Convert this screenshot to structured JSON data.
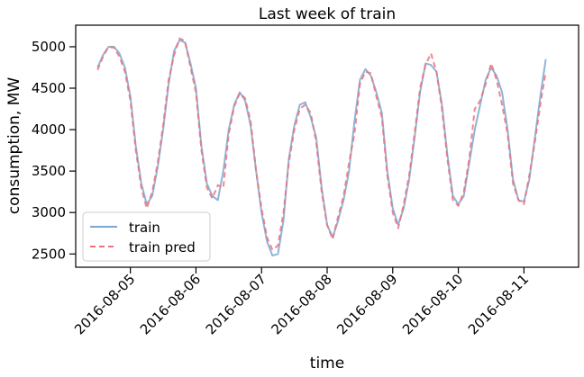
{
  "chart_data": {
    "type": "line",
    "title": "Last week of train",
    "xlabel": "time",
    "ylabel": "consumption, MW",
    "x_ticks": [
      "2016-08-05",
      "2016-08-06",
      "2016-08-07",
      "2016-08-08",
      "2016-08-09",
      "2016-08-10",
      "2016-08-11"
    ],
    "y_ticks": [
      2500,
      3000,
      3500,
      4000,
      4500,
      5000
    ],
    "xlim": [
      "2016-08-04T04:00",
      "2016-08-11T20:00"
    ],
    "ylim": [
      2340,
      5260
    ],
    "legend_position": "lower left",
    "series": [
      {
        "name": "train",
        "color": "#7aa8d2",
        "style": "solid",
        "points": [
          [
            "2016-08-04T12:00",
            4750
          ],
          [
            "2016-08-04T14:00",
            4900
          ],
          [
            "2016-08-04T16:00",
            5000
          ],
          [
            "2016-08-04T18:00",
            5000
          ],
          [
            "2016-08-04T20:00",
            4920
          ],
          [
            "2016-08-04T22:00",
            4750
          ],
          [
            "2016-08-05T00:00",
            4400
          ],
          [
            "2016-08-05T02:00",
            3800
          ],
          [
            "2016-08-05T04:00",
            3350
          ],
          [
            "2016-08-05T06:00",
            3100
          ],
          [
            "2016-08-05T08:00",
            3200
          ],
          [
            "2016-08-05T10:00",
            3550
          ],
          [
            "2016-08-05T12:00",
            4000
          ],
          [
            "2016-08-05T14:00",
            4550
          ],
          [
            "2016-08-05T16:00",
            4950
          ],
          [
            "2016-08-05T18:00",
            5080
          ],
          [
            "2016-08-05T20:00",
            5050
          ],
          [
            "2016-08-05T22:00",
            4800
          ],
          [
            "2016-08-06T00:00",
            4500
          ],
          [
            "2016-08-06T02:00",
            3800
          ],
          [
            "2016-08-06T04:00",
            3350
          ],
          [
            "2016-08-06T06:00",
            3200
          ],
          [
            "2016-08-06T08:00",
            3150
          ],
          [
            "2016-08-06T10:00",
            3500
          ],
          [
            "2016-08-06T12:00",
            4000
          ],
          [
            "2016-08-06T14:00",
            4300
          ],
          [
            "2016-08-06T16:00",
            4450
          ],
          [
            "2016-08-06T18:00",
            4350
          ],
          [
            "2016-08-06T20:00",
            4050
          ],
          [
            "2016-08-06T22:00",
            3500
          ],
          [
            "2016-08-07T00:00",
            3000
          ],
          [
            "2016-08-07T02:00",
            2650
          ],
          [
            "2016-08-07T04:00",
            2480
          ],
          [
            "2016-08-07T06:00",
            2500
          ],
          [
            "2016-08-07T08:00",
            2900
          ],
          [
            "2016-08-07T10:00",
            3650
          ],
          [
            "2016-08-07T12:00",
            4050
          ],
          [
            "2016-08-07T14:00",
            4300
          ],
          [
            "2016-08-07T16:00",
            4330
          ],
          [
            "2016-08-07T18:00",
            4150
          ],
          [
            "2016-08-07T20:00",
            3900
          ],
          [
            "2016-08-07T22:00",
            3300
          ],
          [
            "2016-08-08T00:00",
            2850
          ],
          [
            "2016-08-08T02:00",
            2700
          ],
          [
            "2016-08-08T04:00",
            2900
          ],
          [
            "2016-08-08T06:00",
            3150
          ],
          [
            "2016-08-08T08:00",
            3500
          ],
          [
            "2016-08-08T10:00",
            4100
          ],
          [
            "2016-08-08T12:00",
            4600
          ],
          [
            "2016-08-08T14:00",
            4730
          ],
          [
            "2016-08-08T16:00",
            4650
          ],
          [
            "2016-08-08T18:00",
            4450
          ],
          [
            "2016-08-08T20:00",
            4200
          ],
          [
            "2016-08-08T22:00",
            3500
          ],
          [
            "2016-08-09T00:00",
            3050
          ],
          [
            "2016-08-09T02:00",
            2850
          ],
          [
            "2016-08-09T04:00",
            3050
          ],
          [
            "2016-08-09T06:00",
            3400
          ],
          [
            "2016-08-09T08:00",
            3900
          ],
          [
            "2016-08-09T10:00",
            4450
          ],
          [
            "2016-08-09T12:00",
            4800
          ],
          [
            "2016-08-09T14:00",
            4780
          ],
          [
            "2016-08-09T16:00",
            4700
          ],
          [
            "2016-08-09T18:00",
            4300
          ],
          [
            "2016-08-09T20:00",
            3700
          ],
          [
            "2016-08-09T22:00",
            3200
          ],
          [
            "2016-08-10T00:00",
            3100
          ],
          [
            "2016-08-10T02:00",
            3200
          ],
          [
            "2016-08-10T04:00",
            3600
          ],
          [
            "2016-08-10T06:00",
            4000
          ],
          [
            "2016-08-10T08:00",
            4300
          ],
          [
            "2016-08-10T10:00",
            4600
          ],
          [
            "2016-08-10T12:00",
            4750
          ],
          [
            "2016-08-10T14:00",
            4650
          ],
          [
            "2016-08-10T16:00",
            4450
          ],
          [
            "2016-08-10T18:00",
            4000
          ],
          [
            "2016-08-10T20:00",
            3400
          ],
          [
            "2016-08-10T22:00",
            3150
          ],
          [
            "2016-08-11T00:00",
            3130
          ],
          [
            "2016-08-11T02:00",
            3400
          ],
          [
            "2016-08-11T04:00",
            3900
          ],
          [
            "2016-08-11T06:00",
            4400
          ],
          [
            "2016-08-11T08:00",
            4850
          ]
        ]
      },
      {
        "name": "train pred",
        "color": "#f0717a",
        "style": "dashed",
        "points": [
          [
            "2016-08-04T12:00",
            4720
          ],
          [
            "2016-08-04T14:00",
            4880
          ],
          [
            "2016-08-04T16:00",
            5000
          ],
          [
            "2016-08-04T18:00",
            4990
          ],
          [
            "2016-08-04T20:00",
            4880
          ],
          [
            "2016-08-04T22:00",
            4700
          ],
          [
            "2016-08-05T00:00",
            4350
          ],
          [
            "2016-08-05T02:00",
            3750
          ],
          [
            "2016-08-05T04:00",
            3300
          ],
          [
            "2016-08-05T06:00",
            3050
          ],
          [
            "2016-08-05T08:00",
            3250
          ],
          [
            "2016-08-05T10:00",
            3600
          ],
          [
            "2016-08-05T12:00",
            4050
          ],
          [
            "2016-08-05T14:00",
            4600
          ],
          [
            "2016-08-05T16:00",
            4900
          ],
          [
            "2016-08-05T18:00",
            5100
          ],
          [
            "2016-08-05T20:00",
            5070
          ],
          [
            "2016-08-05T22:00",
            4750
          ],
          [
            "2016-08-06T00:00",
            4450
          ],
          [
            "2016-08-06T02:00",
            3750
          ],
          [
            "2016-08-06T04:00",
            3300
          ],
          [
            "2016-08-06T06:00",
            3170
          ],
          [
            "2016-08-06T08:00",
            3330
          ],
          [
            "2016-08-06T10:00",
            3300
          ],
          [
            "2016-08-06T12:00",
            3950
          ],
          [
            "2016-08-06T14:00",
            4280
          ],
          [
            "2016-08-06T16:00",
            4440
          ],
          [
            "2016-08-06T18:00",
            4380
          ],
          [
            "2016-08-06T20:00",
            4100
          ],
          [
            "2016-08-06T22:00",
            3500
          ],
          [
            "2016-08-07T00:00",
            3050
          ],
          [
            "2016-08-07T02:00",
            2700
          ],
          [
            "2016-08-07T04:00",
            2550
          ],
          [
            "2016-08-07T06:00",
            2600
          ],
          [
            "2016-08-07T08:00",
            3000
          ],
          [
            "2016-08-07T10:00",
            3600
          ],
          [
            "2016-08-07T12:00",
            4000
          ],
          [
            "2016-08-07T14:00",
            4250
          ],
          [
            "2016-08-07T16:00",
            4300
          ],
          [
            "2016-08-07T18:00",
            4200
          ],
          [
            "2016-08-07T20:00",
            3850
          ],
          [
            "2016-08-07T22:00",
            3250
          ],
          [
            "2016-08-08T00:00",
            2850
          ],
          [
            "2016-08-08T02:00",
            2680
          ],
          [
            "2016-08-08T04:00",
            2950
          ],
          [
            "2016-08-08T06:00",
            3200
          ],
          [
            "2016-08-08T08:00",
            3600
          ],
          [
            "2016-08-08T10:00",
            3950
          ],
          [
            "2016-08-08T12:00",
            4550
          ],
          [
            "2016-08-08T14:00",
            4700
          ],
          [
            "2016-08-08T16:00",
            4680
          ],
          [
            "2016-08-08T18:00",
            4400
          ],
          [
            "2016-08-08T20:00",
            4150
          ],
          [
            "2016-08-08T22:00",
            3450
          ],
          [
            "2016-08-09T00:00",
            3000
          ],
          [
            "2016-08-09T02:00",
            2810
          ],
          [
            "2016-08-09T04:00",
            3100
          ],
          [
            "2016-08-09T06:00",
            3450
          ],
          [
            "2016-08-09T08:00",
            3950
          ],
          [
            "2016-08-09T10:00",
            4500
          ],
          [
            "2016-08-09T12:00",
            4780
          ],
          [
            "2016-08-09T14:00",
            4920
          ],
          [
            "2016-08-09T16:00",
            4700
          ],
          [
            "2016-08-09T18:00",
            4250
          ],
          [
            "2016-08-09T20:00",
            3650
          ],
          [
            "2016-08-09T22:00",
            3150
          ],
          [
            "2016-08-10T00:00",
            3080
          ],
          [
            "2016-08-10T02:00",
            3250
          ],
          [
            "2016-08-10T04:00",
            3650
          ],
          [
            "2016-08-10T06:00",
            4250
          ],
          [
            "2016-08-10T08:00",
            4350
          ],
          [
            "2016-08-10T10:00",
            4550
          ],
          [
            "2016-08-10T12:00",
            4800
          ],
          [
            "2016-08-10T14:00",
            4600
          ],
          [
            "2016-08-10T16:00",
            4300
          ],
          [
            "2016-08-10T18:00",
            3950
          ],
          [
            "2016-08-10T20:00",
            3350
          ],
          [
            "2016-08-10T22:00",
            3150
          ],
          [
            "2016-08-11T00:00",
            3100
          ],
          [
            "2016-08-11T02:00",
            3450
          ],
          [
            "2016-08-11T04:00",
            3850
          ],
          [
            "2016-08-11T06:00",
            4300
          ],
          [
            "2016-08-11T08:00",
            4700
          ]
        ]
      }
    ]
  }
}
